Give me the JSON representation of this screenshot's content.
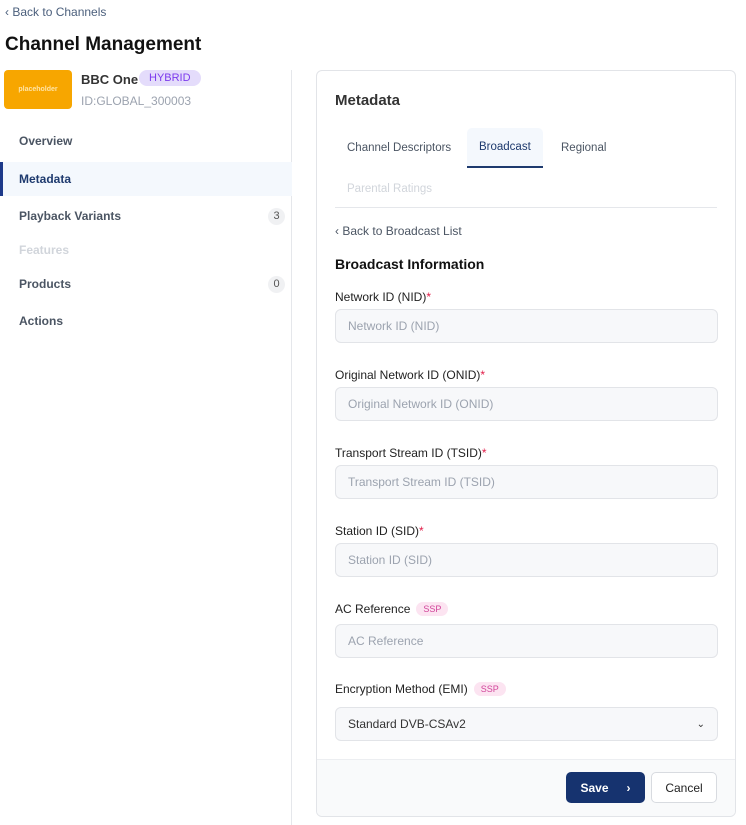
{
  "header": {
    "back_label": "Back to Channels",
    "title": "Channel Management"
  },
  "channel": {
    "logo_text": "placeholder",
    "name": "BBC One",
    "type_badge": "HYBRID",
    "id": "ID:GLOBAL_300003"
  },
  "sidebar": {
    "items": [
      {
        "label": "Overview"
      },
      {
        "label": "Metadata",
        "active": true
      },
      {
        "label": "Playback Variants",
        "count": "3"
      },
      {
        "label": "Features",
        "disabled": true
      },
      {
        "label": "Products",
        "count": "0"
      },
      {
        "label": "Actions"
      }
    ]
  },
  "card": {
    "title": "Metadata",
    "tabs": [
      {
        "label": "Channel Descriptors"
      },
      {
        "label": "Broadcast",
        "active": true
      },
      {
        "label": "Regional"
      },
      {
        "label": "Parental Ratings",
        "disabled": true
      }
    ],
    "back_label": "Back to Broadcast List",
    "section_title": "Broadcast Information",
    "fields": [
      {
        "label": "Network ID (NID)",
        "required": "*",
        "placeholder": "Network ID (NID)",
        "value": ""
      },
      {
        "label": "Original Network ID (ONID)",
        "required": "*",
        "placeholder": "Original Network ID (ONID)",
        "value": ""
      },
      {
        "label": "Transport Stream ID (TSID)",
        "required": "*",
        "placeholder": "Transport Stream ID (TSID)",
        "value": ""
      },
      {
        "label": "Station ID (SID)",
        "required": "*",
        "placeholder": "Station ID (SID)",
        "value": ""
      },
      {
        "label": "AC Reference",
        "tag": "SSP",
        "placeholder": "AC Reference",
        "value": ""
      },
      {
        "label": "Encryption Method (EMI)",
        "tag": "SSP",
        "selected": "Standard DVB-CSAv2"
      }
    ],
    "save_label": "Save",
    "cancel_label": "Cancel"
  },
  "colors": {
    "primary": "#16336f",
    "badge_purple": "#7c3aed",
    "logo": "#f7a600",
    "required": "#e11d48"
  }
}
